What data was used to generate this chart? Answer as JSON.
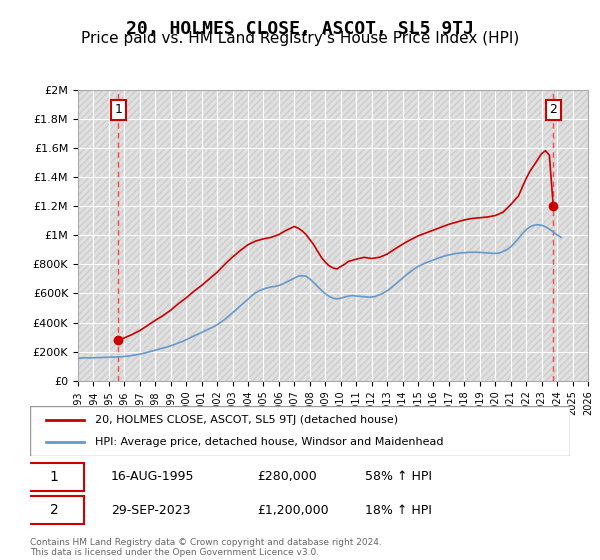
{
  "title": "20, HOLMES CLOSE, ASCOT, SL5 9TJ",
  "subtitle": "Price paid vs. HM Land Registry's House Price Index (HPI)",
  "title_fontsize": 13,
  "subtitle_fontsize": 11,
  "background_color": "#ffffff",
  "plot_bg_color": "#f0f0f0",
  "hatch_color": "#d8d8d8",
  "grid_color": "#ffffff",
  "xmin": 1993,
  "xmax": 2026,
  "ymin": 0,
  "ymax": 2000000,
  "yticks": [
    0,
    200000,
    400000,
    600000,
    800000,
    1000000,
    1200000,
    1400000,
    1600000,
    1800000,
    2000000
  ],
  "ytick_labels": [
    "£0",
    "£200K",
    "£400K",
    "£600K",
    "£800K",
    "£1M",
    "£1.2M",
    "£1.4M",
    "£1.6M",
    "£1.8M",
    "£2M"
  ],
  "xticks": [
    1993,
    1994,
    1995,
    1996,
    1997,
    1998,
    1999,
    2000,
    2001,
    2002,
    2003,
    2004,
    2005,
    2006,
    2007,
    2008,
    2009,
    2010,
    2011,
    2012,
    2013,
    2014,
    2015,
    2016,
    2017,
    2018,
    2019,
    2020,
    2021,
    2022,
    2023,
    2024,
    2025,
    2026
  ],
  "red_line_color": "#cc0000",
  "blue_line_color": "#6699cc",
  "sale1_x": 1995.62,
  "sale1_y": 280000,
  "sale1_label": "1",
  "sale2_x": 2023.75,
  "sale2_y": 1200000,
  "sale2_label": "2",
  "dashed_line_color": "#ff4444",
  "legend_label1": "20, HOLMES CLOSE, ASCOT, SL5 9TJ (detached house)",
  "legend_label2": "HPI: Average price, detached house, Windsor and Maidenhead",
  "table_row1": [
    "1",
    "16-AUG-1995",
    "£280,000",
    "58% ↑ HPI"
  ],
  "table_row2": [
    "2",
    "29-SEP-2023",
    "£1,200,000",
    "18% ↑ HPI"
  ],
  "footer": "Contains HM Land Registry data © Crown copyright and database right 2024.\nThis data is licensed under the Open Government Licence v3.0.",
  "hpi_years": [
    1993,
    1993.25,
    1993.5,
    1993.75,
    1994,
    1994.25,
    1994.5,
    1994.75,
    1995,
    1995.25,
    1995.5,
    1995.75,
    1996,
    1996.25,
    1996.5,
    1996.75,
    1997,
    1997.25,
    1997.5,
    1997.75,
    1998,
    1998.25,
    1998.5,
    1998.75,
    1999,
    1999.25,
    1999.5,
    1999.75,
    2000,
    2000.25,
    2000.5,
    2000.75,
    2001,
    2001.25,
    2001.5,
    2001.75,
    2002,
    2002.25,
    2002.5,
    2002.75,
    2003,
    2003.25,
    2003.5,
    2003.75,
    2004,
    2004.25,
    2004.5,
    2004.75,
    2005,
    2005.25,
    2005.5,
    2005.75,
    2006,
    2006.25,
    2006.5,
    2006.75,
    2007,
    2007.25,
    2007.5,
    2007.75,
    2008,
    2008.25,
    2008.5,
    2008.75,
    2009,
    2009.25,
    2009.5,
    2009.75,
    2010,
    2010.25,
    2010.5,
    2010.75,
    2011,
    2011.25,
    2011.5,
    2011.75,
    2012,
    2012.25,
    2012.5,
    2012.75,
    2013,
    2013.25,
    2013.5,
    2013.75,
    2014,
    2014.25,
    2014.5,
    2014.75,
    2015,
    2015.25,
    2015.5,
    2015.75,
    2016,
    2016.25,
    2016.5,
    2016.75,
    2017,
    2017.25,
    2017.5,
    2017.75,
    2018,
    2018.25,
    2018.5,
    2018.75,
    2019,
    2019.25,
    2019.5,
    2019.75,
    2020,
    2020.25,
    2020.5,
    2020.75,
    2021,
    2021.25,
    2021.5,
    2021.75,
    2022,
    2022.25,
    2022.5,
    2022.75,
    2023,
    2023.25,
    2023.5,
    2023.75,
    2024,
    2024.25
  ],
  "hpi_values": [
    155000,
    157000,
    158000,
    157000,
    158000,
    159000,
    160000,
    161000,
    162000,
    163000,
    164000,
    165000,
    167000,
    170000,
    174000,
    178000,
    183000,
    189000,
    196000,
    203000,
    210000,
    218000,
    225000,
    232000,
    240000,
    250000,
    260000,
    270000,
    282000,
    295000,
    308000,
    320000,
    332000,
    345000,
    358000,
    370000,
    385000,
    403000,
    422000,
    445000,
    468000,
    490000,
    515000,
    538000,
    560000,
    585000,
    605000,
    620000,
    630000,
    638000,
    645000,
    648000,
    655000,
    665000,
    678000,
    692000,
    705000,
    718000,
    722000,
    718000,
    700000,
    675000,
    648000,
    622000,
    598000,
    580000,
    568000,
    562000,
    568000,
    575000,
    582000,
    585000,
    582000,
    580000,
    578000,
    575000,
    575000,
    580000,
    590000,
    602000,
    618000,
    638000,
    660000,
    682000,
    705000,
    728000,
    748000,
    768000,
    785000,
    798000,
    810000,
    820000,
    830000,
    840000,
    850000,
    858000,
    865000,
    870000,
    875000,
    878000,
    880000,
    882000,
    883000,
    883000,
    882000,
    880000,
    878000,
    876000,
    875000,
    878000,
    888000,
    900000,
    920000,
    948000,
    978000,
    1010000,
    1038000,
    1058000,
    1068000,
    1072000,
    1068000,
    1058000,
    1042000,
    1022000,
    1002000,
    985000
  ],
  "red_line_years": [
    1995.62,
    1996,
    1996.5,
    1997,
    1997.5,
    1998,
    1998.5,
    1999,
    1999.5,
    2000,
    2000.5,
    2001,
    2001.5,
    2002,
    2002.5,
    2003,
    2003.5,
    2004,
    2004.5,
    2005,
    2005.5,
    2006,
    2006.5,
    2007,
    2007.25,
    2007.5,
    2007.75,
    2008,
    2008.25,
    2008.5,
    2008.75,
    2009,
    2009.25,
    2009.5,
    2009.75,
    2010,
    2010.25,
    2010.5,
    2011,
    2011.5,
    2012,
    2012.5,
    2013,
    2013.5,
    2014,
    2014.5,
    2015,
    2015.5,
    2016,
    2016.5,
    2017,
    2017.5,
    2018,
    2018.5,
    2019,
    2019.5,
    2020,
    2020.5,
    2021,
    2021.5,
    2022,
    2022.25,
    2022.5,
    2022.75,
    2023,
    2023.25,
    2023.5,
    2023.75
  ],
  "red_line_values": [
    280000,
    295000,
    318000,
    345000,
    380000,
    415000,
    448000,
    485000,
    530000,
    570000,
    615000,
    655000,
    700000,
    745000,
    800000,
    850000,
    895000,
    935000,
    960000,
    975000,
    985000,
    1005000,
    1035000,
    1060000,
    1048000,
    1030000,
    1005000,
    970000,
    935000,
    890000,
    848000,
    815000,
    790000,
    775000,
    768000,
    785000,
    800000,
    820000,
    835000,
    848000,
    840000,
    848000,
    870000,
    905000,
    938000,
    968000,
    995000,
    1015000,
    1035000,
    1055000,
    1075000,
    1090000,
    1105000,
    1115000,
    1120000,
    1125000,
    1135000,
    1158000,
    1210000,
    1270000,
    1390000,
    1440000,
    1480000,
    1520000,
    1560000,
    1580000,
    1550000,
    1200000
  ]
}
